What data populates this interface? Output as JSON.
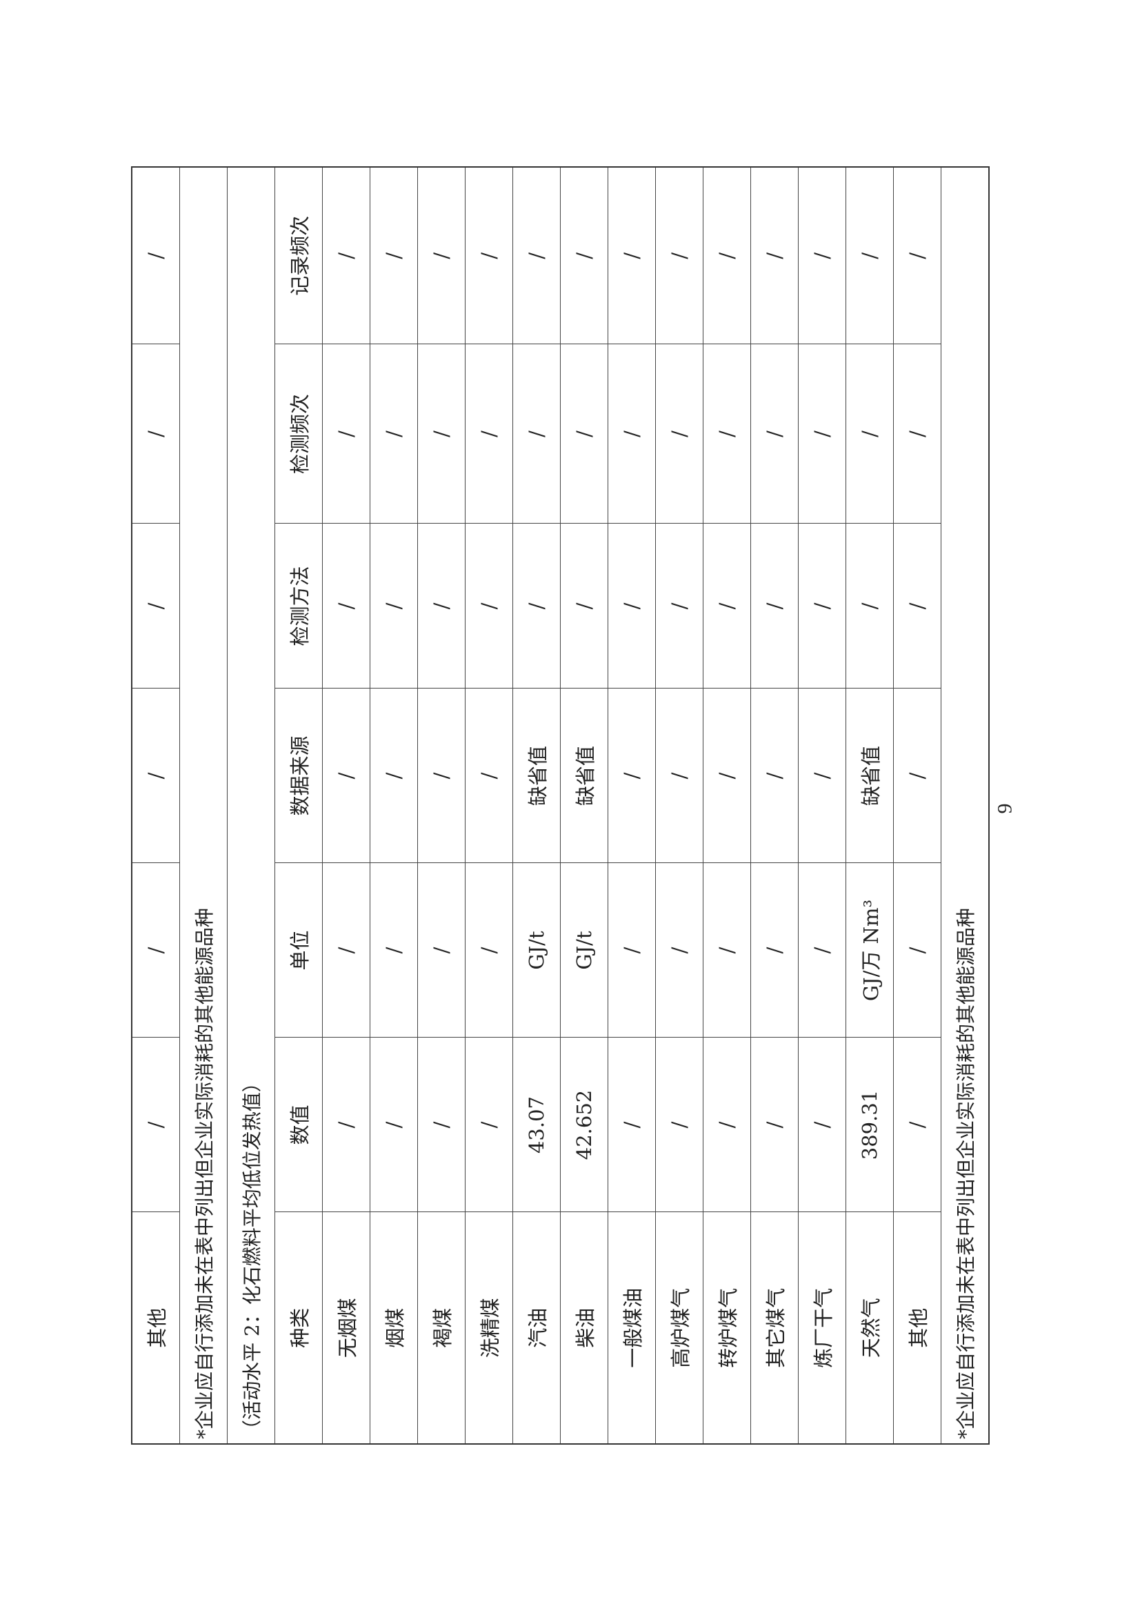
{
  "top_row": {
    "name": "其他",
    "cells": [
      "/",
      "/",
      "/",
      "/",
      "/",
      "/"
    ]
  },
  "note": "*企业应自行添加未在表中列出但企业实际消耗的其他能源品种",
  "section_title": "（活动水平 2：化石燃料平均低位发热值）",
  "headers": [
    "种类",
    "数值",
    "单位",
    "数据来源",
    "检测方法",
    "检测频次",
    "记录频次"
  ],
  "rows": [
    [
      "无烟煤",
      "/",
      "/",
      "/",
      "/",
      "/",
      "/"
    ],
    [
      "烟煤",
      "/",
      "/",
      "/",
      "/",
      "/",
      "/"
    ],
    [
      "褐煤",
      "/",
      "/",
      "/",
      "/",
      "/",
      "/"
    ],
    [
      "洗精煤",
      "/",
      "/",
      "/",
      "/",
      "/",
      "/"
    ],
    [
      "汽油",
      "43.07",
      "GJ/t",
      "缺省值",
      "/",
      "/",
      "/"
    ],
    [
      "柴油",
      "42.652",
      "GJ/t",
      "缺省值",
      "/",
      "/",
      "/"
    ],
    [
      "一般煤油",
      "/",
      "/",
      "/",
      "/",
      "/",
      "/"
    ],
    [
      "高炉煤气",
      "/",
      "/",
      "/",
      "/",
      "/",
      "/"
    ],
    [
      "转炉煤气",
      "/",
      "/",
      "/",
      "/",
      "/",
      "/"
    ],
    [
      "其它煤气",
      "/",
      "/",
      "/",
      "/",
      "/",
      "/"
    ],
    [
      "炼厂干气",
      "/",
      "/",
      "/",
      "/",
      "/",
      "/"
    ],
    [
      "天然气",
      "389.31",
      "GJ/万 Nm³",
      "缺省值",
      "/",
      "/",
      "/"
    ],
    [
      "其他",
      "/",
      "/",
      "/",
      "/",
      "/",
      "/"
    ]
  ],
  "footer_note": "*企业应自行添加未在表中列出但企业实际消耗的其他能源品种",
  "page_number": "9"
}
